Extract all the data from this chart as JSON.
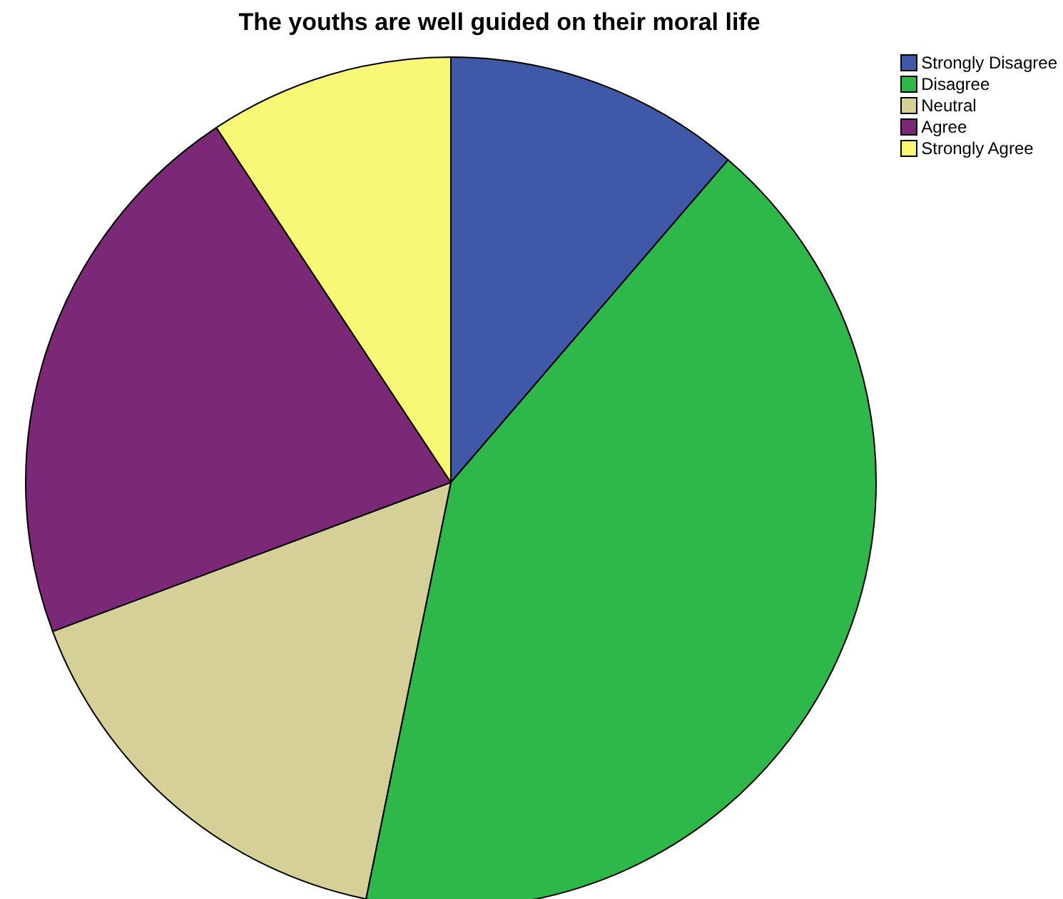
{
  "chart_data": {
    "type": "pie",
    "title": "The youths are well guided on their moral life",
    "categories": [
      "Strongly Disagree",
      "Disagree",
      "Neutral",
      "Agree",
      "Strongly Agree"
    ],
    "values": [
      11.3,
      41.9,
      16.1,
      21.4,
      9.3
    ],
    "colors": [
      "#3f59a8",
      "#2eb84a",
      "#d5cf98",
      "#7b2877",
      "#f9f776"
    ],
    "legend": "top right"
  }
}
